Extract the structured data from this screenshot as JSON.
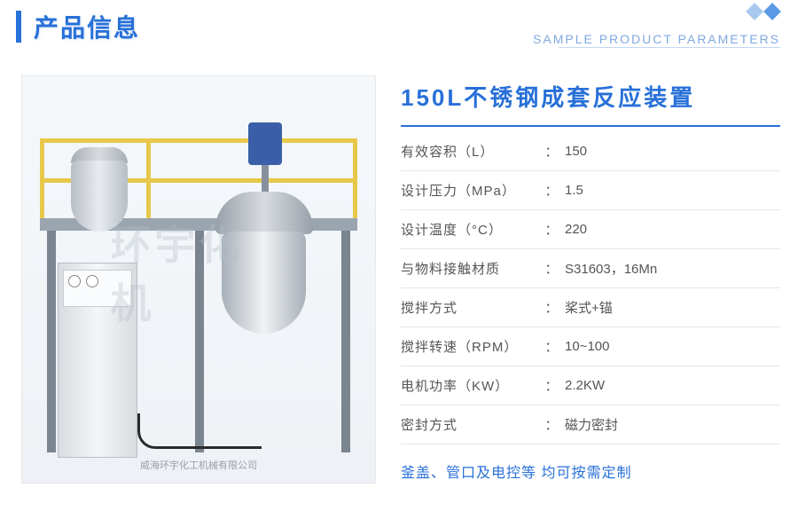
{
  "header": {
    "title": "产品信息",
    "subtitle": "SAMPLE PRODUCT PARAMETERS",
    "accent_color": "#2870d8",
    "diamond_colors": [
      "#a8c8ee",
      "#5a9ae6"
    ]
  },
  "product": {
    "title": "150L不锈钢成套反应装置",
    "watermark": "环宇化机",
    "caption": "威海环宇化工机械有限公司",
    "image_bg": "#f5f8fb"
  },
  "specs": [
    {
      "label": "有效容积（L）",
      "value": "150"
    },
    {
      "label": "设计压力（MPa）",
      "value": "1.5"
    },
    {
      "label": "设计温度（°C）",
      "value": "220"
    },
    {
      "label": "与物料接触材质",
      "value": "S31603，16Mn"
    },
    {
      "label": "搅拌方式",
      "value": "桨式+锚"
    },
    {
      "label": "搅拌转速（RPM）",
      "value": "10~100"
    },
    {
      "label": "电机功率（KW）",
      "value": "2.2KW"
    },
    {
      "label": "密封方式",
      "value": "磁力密封"
    }
  ],
  "colon": "：",
  "custom_note": "釜盖、管口及电控等 均可按需定制",
  "colors": {
    "primary": "#2870d8",
    "text": "#555555",
    "border": "#e5e5e5"
  }
}
